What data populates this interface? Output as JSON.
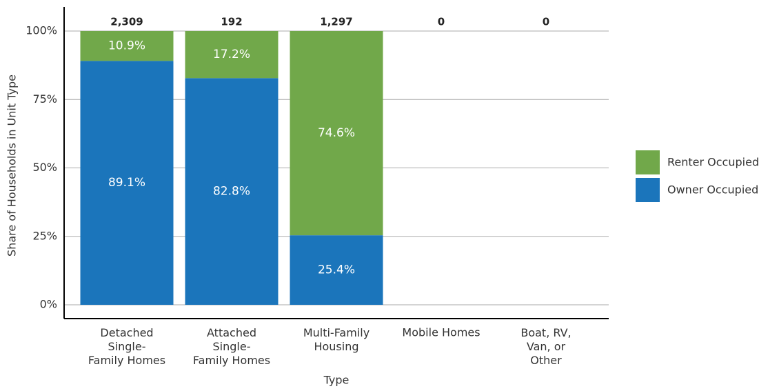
{
  "chart_data": {
    "type": "stacked_bar_100",
    "y_label": "Share of Households in Unit Type",
    "x_label": "Type",
    "categories": [
      "Detached\nSingle-\nFamily Homes",
      "Attached\nSingle-\nFamily Homes",
      "Multi-Family\nHousing",
      "Mobile Homes",
      "Boat, RV,\nVan, or\nOther"
    ],
    "series": [
      {
        "name": "Owner Occupied",
        "color": "#1b75bb",
        "values": [
          89.1,
          82.8,
          25.4,
          null,
          null
        ],
        "value_labels": [
          "89.1%",
          "82.8%",
          "25.4%",
          null,
          null
        ]
      },
      {
        "name": "Renter Occupied",
        "color": "#71a84a",
        "values": [
          10.9,
          17.2,
          74.6,
          null,
          null
        ],
        "value_labels": [
          "10.9%",
          "17.2%",
          "74.6%",
          null,
          null
        ]
      }
    ],
    "totals": {
      "values": [
        2309,
        192,
        1297,
        0,
        0
      ],
      "value_labels": [
        "2,309",
        "192",
        "1,297",
        "0",
        "0"
      ]
    },
    "ylim": [
      0,
      100
    ],
    "yticks": [
      {
        "value": 0,
        "label": "0%"
      },
      {
        "value": 25,
        "label": "25%"
      },
      {
        "value": 50,
        "label": "50%"
      },
      {
        "value": 75,
        "label": "75%"
      },
      {
        "value": 100,
        "label": "100%"
      }
    ],
    "grid": true,
    "legend": "right"
  }
}
